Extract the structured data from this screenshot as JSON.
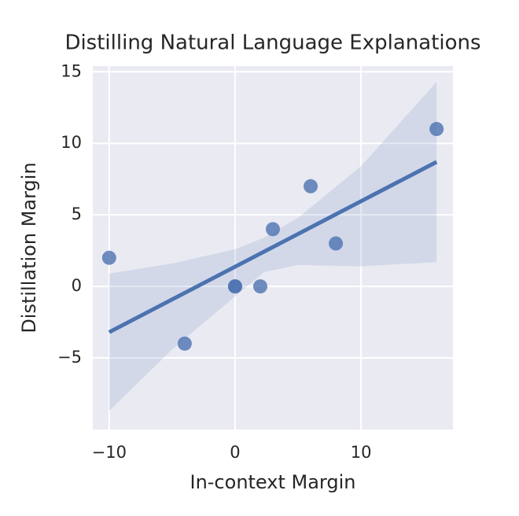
{
  "chart_data": {
    "type": "scatter",
    "title": "Distilling Natural Language Explanations",
    "x_label": "In-context Margin",
    "y_label": "Distillation Margin",
    "points": {
      "x": [
        -10,
        -4,
        0,
        0,
        2,
        3,
        6,
        8,
        16
      ],
      "y": [
        2,
        -4,
        0,
        0,
        0,
        4,
        7,
        3,
        11
      ],
      "color": "#4c72b0"
    },
    "fit": {
      "x": [
        -10,
        16
      ],
      "y": [
        -3.2,
        8.7
      ],
      "color": "#4c72b0"
    },
    "ci": {
      "x": [
        -10,
        -5,
        0,
        2.3,
        5,
        10,
        16
      ],
      "upper": [
        0.9,
        1.6,
        2.6,
        3.4,
        4.8,
        8.4,
        14.3
      ],
      "lower": [
        -8.7,
        -4.4,
        -0.7,
        1.0,
        1.5,
        1.4,
        1.7
      ]
    },
    "xlim": [
      -11.3,
      17.3
    ],
    "ylim": [
      -10,
      15.4
    ],
    "xticks": [
      {
        "value": -10,
        "label": "−10"
      },
      0,
      10
    ],
    "yticks": [
      {
        "value": -5,
        "label": "−5"
      },
      0,
      5,
      10,
      15
    ],
    "grid": true
  }
}
